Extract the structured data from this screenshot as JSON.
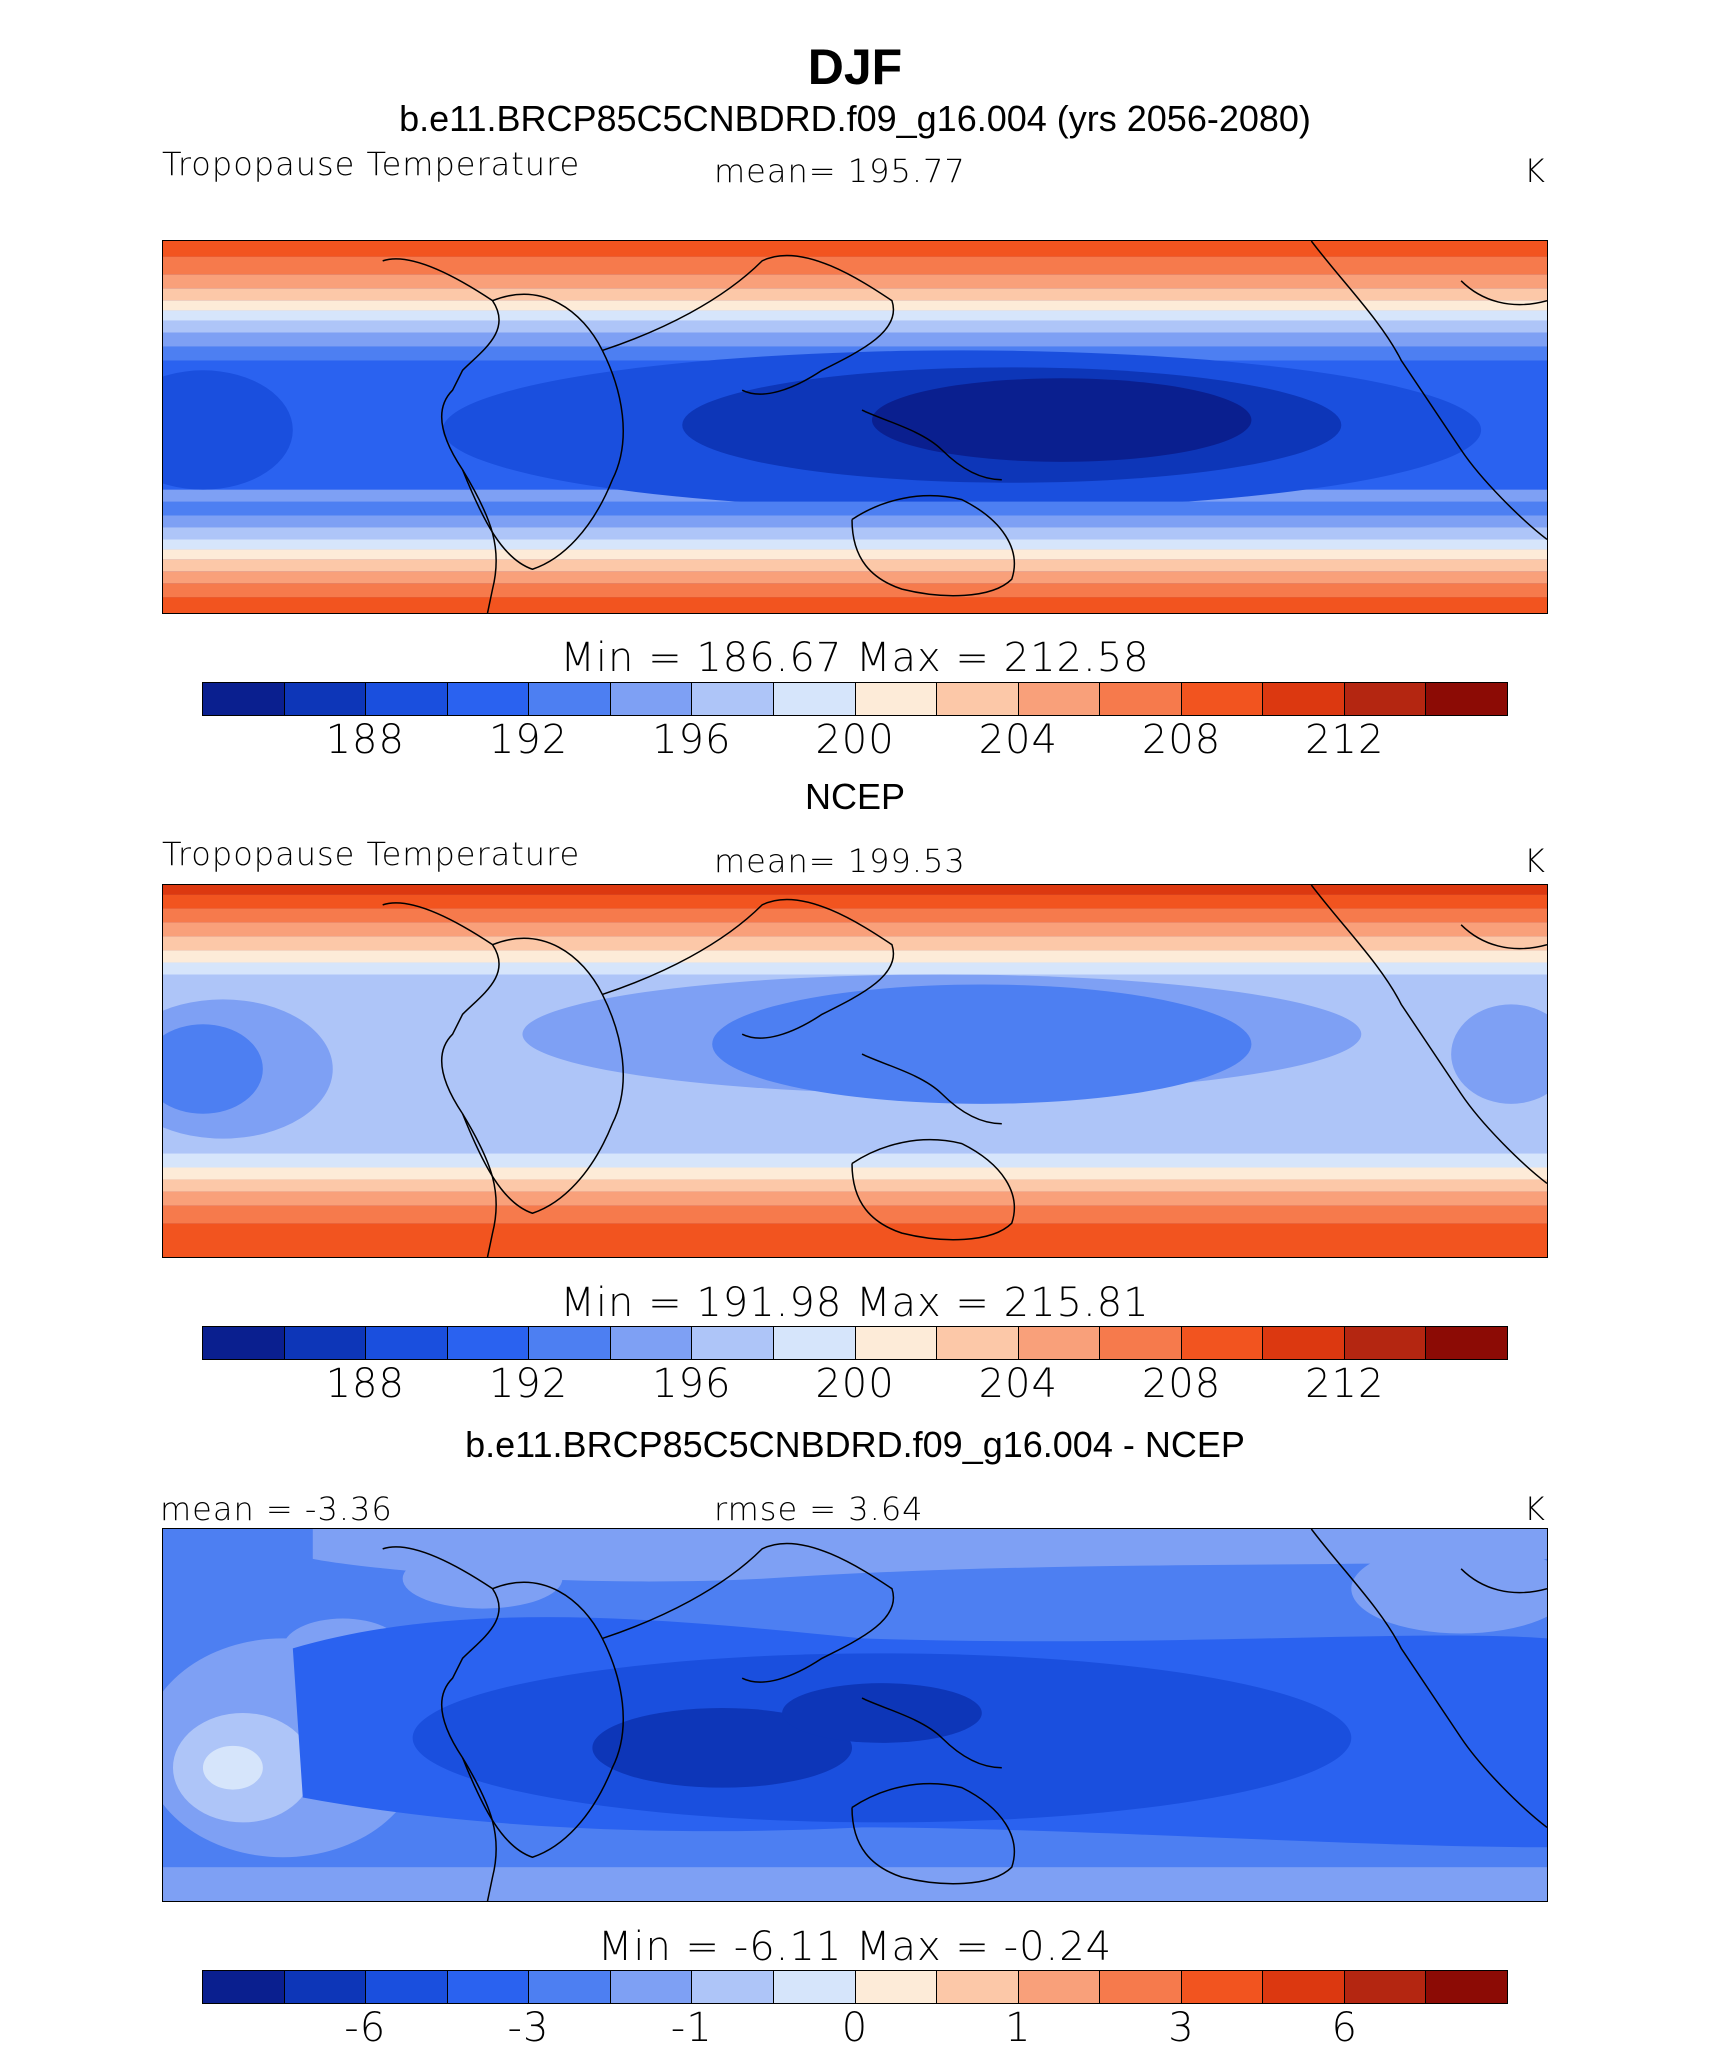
{
  "figure": {
    "title": "DJF"
  },
  "panels": [
    {
      "title": "b.e11.BRCP85C5CNBDRD.f09_g16.004 (yrs 2056-2080)",
      "left_label": "Tropopause Temperature",
      "center_label": "mean= 195.77",
      "right_label": "K",
      "minmax": "Min = 186.67 Max = 212.58",
      "min": 186.67,
      "max": 212.58,
      "mean": 195.77,
      "ticks": [
        "188",
        "192",
        "196",
        "200",
        "204",
        "208",
        "212"
      ]
    },
    {
      "title": "NCEP",
      "left_label": "Tropopause Temperature",
      "center_label": "mean= 199.53",
      "right_label": "K",
      "minmax": "Min = 191.98 Max = 215.81",
      "min": 191.98,
      "max": 215.81,
      "mean": 199.53,
      "ticks": [
        "188",
        "192",
        "196",
        "200",
        "204",
        "208",
        "212"
      ]
    },
    {
      "title": "b.e11.BRCP85C5CNBDRD.f09_g16.004 - NCEP",
      "left_label": "mean = -3.36",
      "center_label": "rmse = 3.64",
      "right_label": "K",
      "minmax": "Min = -6.11 Max = -0.24",
      "min": -6.11,
      "max": -0.24,
      "mean": -3.36,
      "rmse": 3.64,
      "ticks": [
        "-6",
        "-3",
        "-1",
        "0",
        "1",
        "3",
        "6"
      ]
    }
  ],
  "colorbar_colors": [
    "#0a1f8f",
    "#0d36b8",
    "#1a4fde",
    "#2a62f0",
    "#4d7ff2",
    "#7ea0f4",
    "#aec5f8",
    "#d6e5fb",
    "#fdebd8",
    "#fcc8a8",
    "#f9a07a",
    "#f67a4c",
    "#f2541f",
    "#dc3810",
    "#b42611",
    "#8c0b05"
  ],
  "map_projection": "cylindrical equidistant, 30E-30E centered on 210E",
  "fields": [
    "model tropopause temperature",
    "NCEP tropopause temperature",
    "model minus NCEP difference"
  ]
}
